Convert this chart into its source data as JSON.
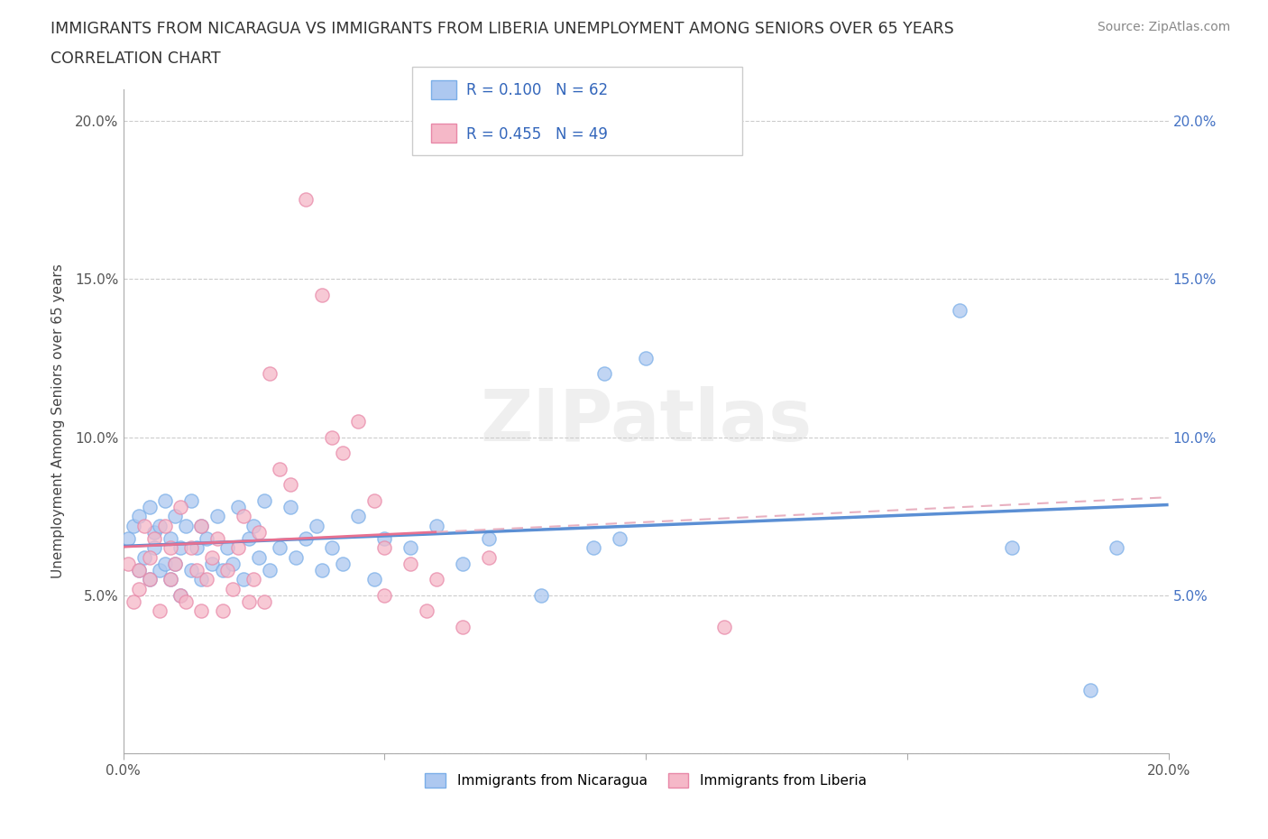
{
  "title_line1": "IMMIGRANTS FROM NICARAGUA VS IMMIGRANTS FROM LIBERIA UNEMPLOYMENT AMONG SENIORS OVER 65 YEARS",
  "title_line2": "CORRELATION CHART",
  "source_text": "Source: ZipAtlas.com",
  "ylabel": "Unemployment Among Seniors over 65 years",
  "xlim": [
    0.0,
    0.2
  ],
  "ylim": [
    0.0,
    0.21
  ],
  "xticks": [
    0.0,
    0.05,
    0.1,
    0.15,
    0.2
  ],
  "yticks": [
    0.0,
    0.05,
    0.1,
    0.15,
    0.2
  ],
  "xticklabels": [
    "0.0%",
    "",
    "",
    "",
    "20.0%"
  ],
  "yticklabels_left": [
    "",
    "5.0%",
    "10.0%",
    "15.0%",
    "20.0%"
  ],
  "yticklabels_right": [
    "",
    "5.0%",
    "10.0%",
    "15.0%",
    "20.0%"
  ],
  "nicaragua_color": "#adc8f0",
  "nicaragua_edge": "#7aaee8",
  "liberia_color": "#f5b8c8",
  "liberia_edge": "#e888a8",
  "nicaragua_R": 0.1,
  "nicaragua_N": 62,
  "liberia_R": 0.455,
  "liberia_N": 49,
  "nicaragua_line_color": "#5b8fd4",
  "liberia_line_color": "#e87090",
  "liberia_dash_color": "#e8b0c0",
  "watermark": "ZIPatlas",
  "legend_label_1": "Immigrants from Nicaragua",
  "legend_label_2": "Immigrants from Liberia",
  "nicaragua_scatter": [
    [
      0.001,
      0.068
    ],
    [
      0.002,
      0.072
    ],
    [
      0.003,
      0.058
    ],
    [
      0.003,
      0.075
    ],
    [
      0.004,
      0.062
    ],
    [
      0.005,
      0.055
    ],
    [
      0.005,
      0.078
    ],
    [
      0.006,
      0.065
    ],
    [
      0.006,
      0.07
    ],
    [
      0.007,
      0.058
    ],
    [
      0.007,
      0.072
    ],
    [
      0.008,
      0.06
    ],
    [
      0.008,
      0.08
    ],
    [
      0.009,
      0.055
    ],
    [
      0.009,
      0.068
    ],
    [
      0.01,
      0.06
    ],
    [
      0.01,
      0.075
    ],
    [
      0.011,
      0.05
    ],
    [
      0.011,
      0.065
    ],
    [
      0.012,
      0.072
    ],
    [
      0.013,
      0.058
    ],
    [
      0.013,
      0.08
    ],
    [
      0.014,
      0.065
    ],
    [
      0.015,
      0.072
    ],
    [
      0.015,
      0.055
    ],
    [
      0.016,
      0.068
    ],
    [
      0.017,
      0.06
    ],
    [
      0.018,
      0.075
    ],
    [
      0.019,
      0.058
    ],
    [
      0.02,
      0.065
    ],
    [
      0.021,
      0.06
    ],
    [
      0.022,
      0.078
    ],
    [
      0.023,
      0.055
    ],
    [
      0.024,
      0.068
    ],
    [
      0.025,
      0.072
    ],
    [
      0.026,
      0.062
    ],
    [
      0.027,
      0.08
    ],
    [
      0.028,
      0.058
    ],
    [
      0.03,
      0.065
    ],
    [
      0.032,
      0.078
    ],
    [
      0.033,
      0.062
    ],
    [
      0.035,
      0.068
    ],
    [
      0.037,
      0.072
    ],
    [
      0.038,
      0.058
    ],
    [
      0.04,
      0.065
    ],
    [
      0.042,
      0.06
    ],
    [
      0.045,
      0.075
    ],
    [
      0.048,
      0.055
    ],
    [
      0.05,
      0.068
    ],
    [
      0.055,
      0.065
    ],
    [
      0.06,
      0.072
    ],
    [
      0.065,
      0.06
    ],
    [
      0.07,
      0.068
    ],
    [
      0.08,
      0.05
    ],
    [
      0.09,
      0.065
    ],
    [
      0.092,
      0.12
    ],
    [
      0.095,
      0.068
    ],
    [
      0.1,
      0.125
    ],
    [
      0.16,
      0.14
    ],
    [
      0.17,
      0.065
    ],
    [
      0.185,
      0.02
    ],
    [
      0.19,
      0.065
    ]
  ],
  "liberia_scatter": [
    [
      0.001,
      0.06
    ],
    [
      0.002,
      0.048
    ],
    [
      0.003,
      0.058
    ],
    [
      0.003,
      0.052
    ],
    [
      0.004,
      0.072
    ],
    [
      0.005,
      0.062
    ],
    [
      0.005,
      0.055
    ],
    [
      0.006,
      0.068
    ],
    [
      0.007,
      0.045
    ],
    [
      0.008,
      0.072
    ],
    [
      0.009,
      0.055
    ],
    [
      0.009,
      0.065
    ],
    [
      0.01,
      0.06
    ],
    [
      0.011,
      0.05
    ],
    [
      0.011,
      0.078
    ],
    [
      0.012,
      0.048
    ],
    [
      0.013,
      0.065
    ],
    [
      0.014,
      0.058
    ],
    [
      0.015,
      0.072
    ],
    [
      0.015,
      0.045
    ],
    [
      0.016,
      0.055
    ],
    [
      0.017,
      0.062
    ],
    [
      0.018,
      0.068
    ],
    [
      0.019,
      0.045
    ],
    [
      0.02,
      0.058
    ],
    [
      0.021,
      0.052
    ],
    [
      0.022,
      0.065
    ],
    [
      0.023,
      0.075
    ],
    [
      0.024,
      0.048
    ],
    [
      0.025,
      0.055
    ],
    [
      0.026,
      0.07
    ],
    [
      0.027,
      0.048
    ],
    [
      0.028,
      0.12
    ],
    [
      0.03,
      0.09
    ],
    [
      0.032,
      0.085
    ],
    [
      0.035,
      0.175
    ],
    [
      0.038,
      0.145
    ],
    [
      0.04,
      0.1
    ],
    [
      0.042,
      0.095
    ],
    [
      0.045,
      0.105
    ],
    [
      0.048,
      0.08
    ],
    [
      0.05,
      0.065
    ],
    [
      0.05,
      0.05
    ],
    [
      0.055,
      0.06
    ],
    [
      0.058,
      0.045
    ],
    [
      0.06,
      0.055
    ],
    [
      0.065,
      0.04
    ],
    [
      0.07,
      0.062
    ],
    [
      0.115,
      0.04
    ]
  ]
}
